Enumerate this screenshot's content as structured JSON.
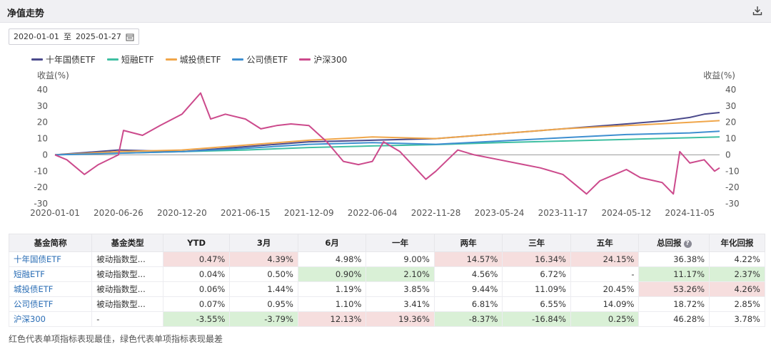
{
  "header": {
    "title": "净值走势"
  },
  "date_range": {
    "start": "2020-01-01",
    "separator": "至",
    "end": "2025-01-27"
  },
  "chart_data": {
    "type": "line",
    "ylabel_left": "收益(%)",
    "ylabel_right": "收益(%)",
    "ylim": [
      -30,
      40
    ],
    "yticks": [
      40,
      30,
      20,
      10,
      0,
      -10,
      -20,
      -30
    ],
    "x_tick_labels": [
      "2020-01-01",
      "2020-06-26",
      "2020-12-20",
      "2021-06-15",
      "2021-12-09",
      "2022-06-04",
      "2022-11-28",
      "2023-05-24",
      "2023-11-17",
      "2024-05-12",
      "2024-11-05"
    ],
    "x_range": [
      "2020-01-01",
      "2025-01-27"
    ],
    "legend_position": "top-left",
    "series": [
      {
        "name": "十年国债ETF",
        "color": "#4b4a8c",
        "x": [
          "2020-01-01",
          "2020-06-26",
          "2020-12-20",
          "2021-06-15",
          "2021-12-09",
          "2022-06-04",
          "2022-11-28",
          "2023-05-24",
          "2023-11-17",
          "2024-05-12",
          "2024-09-01",
          "2024-11-05",
          "2024-12-15",
          "2025-01-27"
        ],
        "values": [
          0,
          3,
          2,
          5,
          8,
          9,
          10,
          13,
          16,
          19,
          21,
          23,
          25,
          26
        ]
      },
      {
        "name": "短融ETF",
        "color": "#3fbfa2",
        "x": [
          "2020-01-01",
          "2020-06-26",
          "2020-12-20",
          "2021-06-15",
          "2021-12-09",
          "2022-06-04",
          "2022-11-28",
          "2023-05-24",
          "2023-11-17",
          "2024-05-12",
          "2024-11-05",
          "2025-01-27"
        ],
        "values": [
          0,
          1,
          2,
          3,
          4.5,
          5.5,
          6.3,
          7.5,
          8.5,
          9.5,
          10.5,
          11
        ]
      },
      {
        "name": "城投债ETF",
        "color": "#f0a64a",
        "x": [
          "2020-01-01",
          "2020-06-26",
          "2020-12-20",
          "2021-06-15",
          "2021-12-09",
          "2022-06-04",
          "2022-11-28",
          "2023-05-24",
          "2023-11-17",
          "2024-05-12",
          "2024-11-05",
          "2025-01-27"
        ],
        "values": [
          0,
          2,
          3,
          6,
          9,
          11,
          10,
          13,
          16,
          18,
          20,
          21
        ]
      },
      {
        "name": "公司债ETF",
        "color": "#3e8fd0",
        "x": [
          "2020-01-01",
          "2020-06-26",
          "2020-12-20",
          "2021-06-15",
          "2021-12-09",
          "2022-06-04",
          "2022-11-28",
          "2023-05-24",
          "2023-11-17",
          "2024-05-12",
          "2024-11-05",
          "2025-01-27"
        ],
        "values": [
          0,
          1,
          2,
          4,
          6.5,
          7.5,
          6.5,
          8.5,
          10.5,
          12.5,
          13.5,
          14.5
        ]
      },
      {
        "name": "沪深300",
        "color": "#cc4a8c",
        "x": [
          "2020-01-01",
          "2020-02-03",
          "2020-03-23",
          "2020-05-01",
          "2020-06-26",
          "2020-07-10",
          "2020-09-01",
          "2020-10-20",
          "2020-12-20",
          "2021-02-10",
          "2021-03-10",
          "2021-04-20",
          "2021-06-15",
          "2021-07-28",
          "2021-09-10",
          "2021-10-20",
          "2021-12-09",
          "2022-01-28",
          "2022-03-15",
          "2022-04-26",
          "2022-06-04",
          "2022-07-05",
          "2022-08-20",
          "2022-10-31",
          "2022-11-28",
          "2023-01-28",
          "2023-03-15",
          "2023-05-24",
          "2023-07-31",
          "2023-09-15",
          "2023-11-17",
          "2024-01-22",
          "2024-02-28",
          "2024-04-10",
          "2024-05-12",
          "2024-06-20",
          "2024-08-20",
          "2024-09-20",
          "2024-10-08",
          "2024-11-05",
          "2024-12-15",
          "2025-01-13",
          "2025-01-27"
        ],
        "values": [
          0,
          -3,
          -12,
          -6,
          0,
          15,
          12,
          18,
          25,
          38,
          22,
          25,
          22,
          16,
          18,
          19,
          18,
          8,
          -4,
          -6,
          -4,
          8,
          2,
          -15,
          -10,
          3,
          0,
          -3,
          -6,
          -8,
          -12,
          -24,
          -16,
          -12,
          -9,
          -14,
          -17,
          -24,
          2,
          -5,
          -3,
          -10,
          -8
        ]
      }
    ]
  },
  "table": {
    "headers": [
      "基金简称",
      "基金类型",
      "YTD",
      "3月",
      "6月",
      "一年",
      "两年",
      "三年",
      "五年",
      "总回报",
      "年化回报"
    ],
    "rows": [
      [
        "十年国债ETF",
        "被动指数型...",
        "0.47%",
        "4.39%",
        "4.98%",
        "9.00%",
        "14.57%",
        "16.34%",
        "24.15%",
        "36.38%",
        "4.22%"
      ],
      [
        "短融ETF",
        "被动指数型...",
        "0.04%",
        "0.50%",
        "0.90%",
        "2.10%",
        "4.56%",
        "6.72%",
        "-",
        "11.17%",
        "2.37%"
      ],
      [
        "城投债ETF",
        "被动指数型...",
        "0.06%",
        "1.44%",
        "1.19%",
        "3.85%",
        "9.44%",
        "11.09%",
        "20.45%",
        "53.26%",
        "4.26%"
      ],
      [
        "公司债ETF",
        "被动指数型...",
        "0.07%",
        "0.95%",
        "1.10%",
        "3.41%",
        "6.81%",
        "6.55%",
        "14.09%",
        "18.72%",
        "2.85%"
      ],
      [
        "沪深300",
        "-",
        "-3.55%",
        "-3.79%",
        "12.13%",
        "19.36%",
        "-8.37%",
        "-16.84%",
        "0.25%",
        "46.28%",
        "3.78%"
      ]
    ],
    "highlight": [
      [
        "",
        "",
        "red",
        "red",
        "",
        "",
        "red",
        "red",
        "red",
        "",
        ""
      ],
      [
        "",
        "",
        "",
        "",
        "green",
        "green",
        "",
        "",
        "",
        "green",
        "green"
      ],
      [
        "",
        "",
        "",
        "",
        "",
        "",
        "",
        "",
        "",
        "red",
        "red"
      ],
      [
        "",
        "",
        "",
        "",
        "",
        "",
        "",
        "",
        "",
        "",
        ""
      ],
      [
        "",
        "",
        "green",
        "green",
        "red",
        "red",
        "green",
        "green",
        "green",
        "",
        ""
      ]
    ]
  },
  "footnote": "红色代表单项指标表现最佳，绿色代表单项指标表现最差"
}
